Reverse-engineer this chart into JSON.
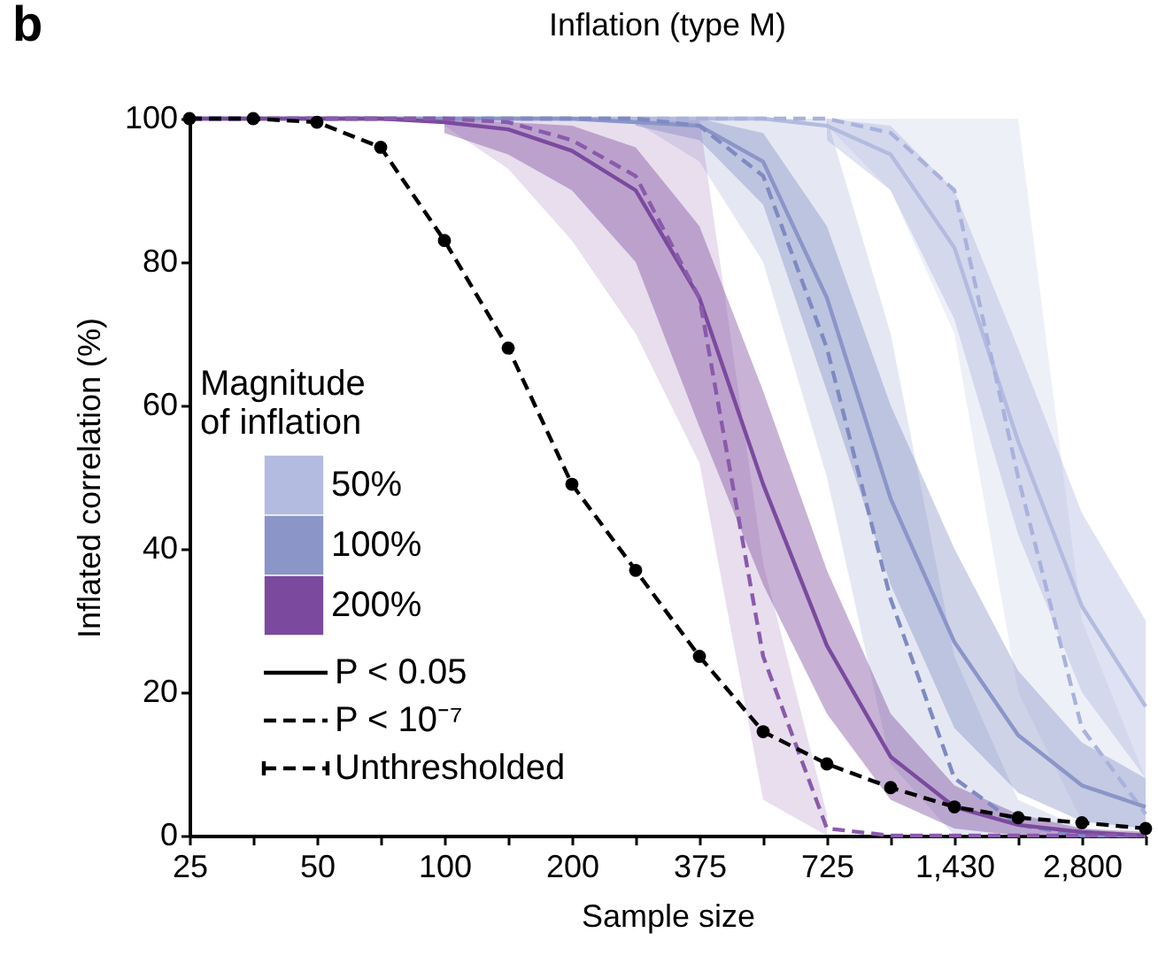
{
  "chart_data": {
    "type": "line",
    "title": "Inflation (type M)",
    "xlabel": "Sample size",
    "ylabel": "Inflated correlation (%)",
    "legend_title": "Magnitude of inflation",
    "legend": "left",
    "grid": false,
    "categories": [
      "25",
      null,
      "50",
      null,
      "100",
      null,
      "200",
      null,
      "375",
      null,
      "725",
      null,
      "1,430",
      null,
      "2,800",
      null
    ],
    "ylim": [
      0,
      100
    ],
    "yticks": [
      0,
      20,
      40,
      60,
      80,
      100
    ],
    "annotations": [
      "b",
      "P < 0.05",
      "P < 10⁻⁷"
    ],
    "series": [
      {
        "name": "50%",
        "color": "#b3bbe0",
        "line_style": "solid",
        "values": [
          100,
          100,
          100,
          100,
          100,
          100,
          100,
          100,
          100,
          100,
          99,
          95,
          82,
          55,
          32,
          18
        ],
        "lower": [
          null,
          null,
          null,
          null,
          null,
          null,
          null,
          null,
          null,
          null,
          97,
          90,
          72,
          42,
          20,
          8
        ],
        "upper": [
          null,
          null,
          null,
          null,
          null,
          null,
          null,
          null,
          null,
          null,
          100,
          99,
          90,
          68,
          45,
          30
        ]
      },
      {
        "color": "#a9b2dc",
        "line_style": "dashed",
        "values": [
          100,
          100,
          100,
          100,
          100,
          100,
          100,
          100,
          100,
          100,
          100,
          98,
          90,
          50,
          15,
          3
        ],
        "lower": [
          null,
          null,
          null,
          null,
          null,
          null,
          null,
          null,
          null,
          null,
          99,
          90,
          70,
          20,
          2,
          0
        ],
        "upper": [
          null,
          null,
          null,
          null,
          null,
          null,
          null,
          null,
          null,
          null,
          100,
          100,
          100,
          100,
          30,
          8
        ]
      },
      {
        "name": "100%",
        "color": "#8b95c8",
        "line_style": "solid",
        "values": [
          100,
          100,
          100,
          100,
          100,
          100,
          100,
          99.5,
          99,
          94,
          75,
          47,
          27,
          14,
          7,
          4
        ],
        "lower": [
          null,
          null,
          null,
          null,
          null,
          null,
          null,
          99,
          97,
          88,
          62,
          35,
          15,
          6,
          2,
          1
        ],
        "upper": [
          null,
          null,
          null,
          null,
          null,
          null,
          null,
          100,
          100,
          98,
          85,
          60,
          40,
          23,
          13,
          8
        ]
      },
      {
        "color": "#7f8ac2",
        "line_style": "dashed",
        "values": [
          100,
          100,
          100,
          100,
          100,
          100,
          100,
          100,
          99,
          92,
          68,
          33,
          8,
          1.5,
          0,
          0
        ],
        "lower": [
          null,
          null,
          null,
          null,
          null,
          null,
          null,
          99.5,
          94,
          80,
          50,
          10,
          0,
          0,
          0,
          0
        ],
        "upper": [
          null,
          null,
          null,
          null,
          null,
          null,
          null,
          100,
          100,
          100,
          100,
          70,
          25,
          5,
          1,
          0
        ]
      },
      {
        "name": "200%",
        "color": "#7b4a9e",
        "line_style": "solid",
        "values": [
          100,
          100,
          100,
          100,
          99.5,
          98.5,
          95.5,
          90,
          75,
          49,
          26.5,
          11,
          4,
          1.5,
          0.5,
          0
        ],
        "lower": [
          null,
          null,
          null,
          null,
          98,
          95,
          90,
          80,
          57,
          35,
          17,
          5,
          1,
          0,
          0,
          0
        ],
        "upper": [
          null,
          null,
          null,
          null,
          100,
          99.5,
          99,
          96,
          85,
          62,
          37,
          17,
          7,
          3,
          1,
          0.5
        ]
      },
      {
        "color": "#8a5aab",
        "line_style": "dashed",
        "values": [
          100,
          100,
          100,
          100,
          100,
          99.5,
          97,
          92,
          75,
          25,
          1,
          0,
          0,
          0,
          0,
          0
        ],
        "lower": [
          null,
          null,
          null,
          null,
          99,
          93,
          83,
          70,
          52,
          5,
          0,
          null,
          null,
          null,
          null,
          null
        ],
        "upper": [
          null,
          null,
          null,
          null,
          100,
          100,
          100,
          100,
          100,
          38,
          3,
          null,
          null,
          null,
          null,
          null
        ]
      },
      {
        "name": "Unthresholded",
        "color": "#000000",
        "line_style": "dashed",
        "marker": "circle",
        "values": [
          100,
          100,
          99.5,
          96,
          83,
          68,
          49,
          37,
          25,
          14.5,
          10,
          6.7,
          4,
          2.5,
          1.8,
          1
        ]
      }
    ]
  }
}
